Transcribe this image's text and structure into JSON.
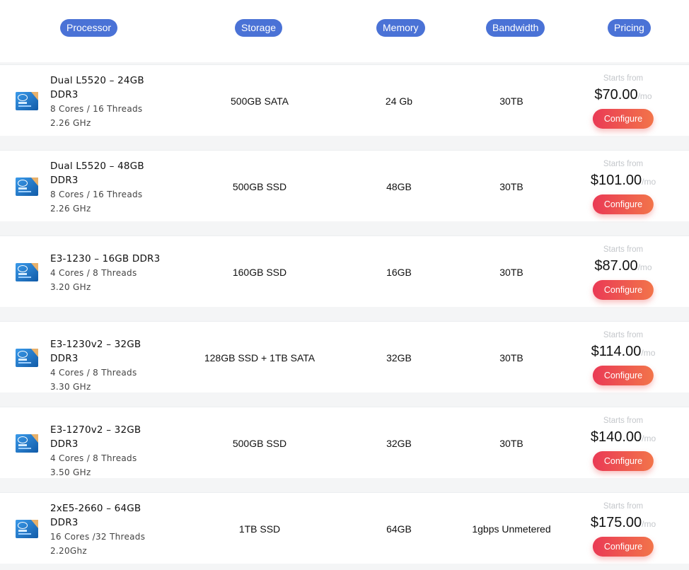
{
  "headers": {
    "processor": "Processor",
    "storage": "Storage",
    "memory": "Memory",
    "bandwidth": "Bandwidth",
    "pricing": "Pricing"
  },
  "brand_colors": {
    "header_pill": "#4a72d6",
    "button_start": "#ea3a55",
    "button_end": "#f2744a"
  },
  "rows": [
    {
      "cpu_icon": "intel-xeon-icon",
      "title_lines": [
        "Dual L5520 – 24GB",
        "DDR3"
      ],
      "cores": "8 Cores / 16 Threads",
      "clock": "2.26 GHz",
      "storage": "500GB SATA",
      "memory": "24 Gb",
      "bandwidth": "30TB",
      "starts_from": "Starts from",
      "price": "$70.00",
      "per": "/mo",
      "button": "Configure"
    },
    {
      "cpu_icon": "intel-xeon-icon",
      "title_lines": [
        "Dual L5520 – 48GB",
        "DDR3"
      ],
      "cores": "8 Cores / 16 Threads",
      "clock": "2.26 GHz",
      "storage": "500GB SSD",
      "memory": "48GB",
      "bandwidth": "30TB",
      "starts_from": "Starts from",
      "price": "$101.00",
      "per": "/mo",
      "button": "Configure"
    },
    {
      "cpu_icon": "intel-xeon-icon",
      "title_lines": [
        "E3-1230 – 16GB DDR3"
      ],
      "cores": "4 Cores / 8 Threads",
      "clock": "3.20 GHz",
      "storage": "160GB SSD",
      "memory": "16GB",
      "bandwidth": "30TB",
      "starts_from": "Starts from",
      "price": "$87.00",
      "per": "/mo",
      "button": "Configure"
    },
    {
      "cpu_icon": "intel-xeon-icon",
      "title_lines": [
        "E3-1230v2 – 32GB DDR3"
      ],
      "cores": "4 Cores / 8 Threads",
      "clock": "3.30 GHz",
      "storage": "128GB SSD + 1TB SATA",
      "memory": "32GB",
      "bandwidth": "30TB",
      "starts_from": "Starts from",
      "price": "$114.00",
      "per": "/mo",
      "button": "Configure"
    },
    {
      "cpu_icon": "intel-xeon-icon",
      "title_lines": [
        "E3-1270v2 – 32GB DDR3"
      ],
      "cores": "4 Cores / 8 Threads",
      "clock": "3.50 GHz",
      "storage": "500GB SSD",
      "memory": "32GB",
      "bandwidth": "30TB",
      "starts_from": "Starts from",
      "price": "$140.00",
      "per": "/mo",
      "button": "Configure"
    },
    {
      "cpu_icon": "intel-xeon-icon",
      "title_lines": [
        "2xE5-2660 – 64GB",
        "DDR3"
      ],
      "cores": "16 Cores /32 Threads",
      "clock": "2.20Ghz",
      "storage": "1TB SSD",
      "memory": "64GB",
      "bandwidth": "1gbps Unmetered",
      "starts_from": "Starts from",
      "price": "$175.00",
      "per": "/mo",
      "button": "Configure"
    }
  ]
}
